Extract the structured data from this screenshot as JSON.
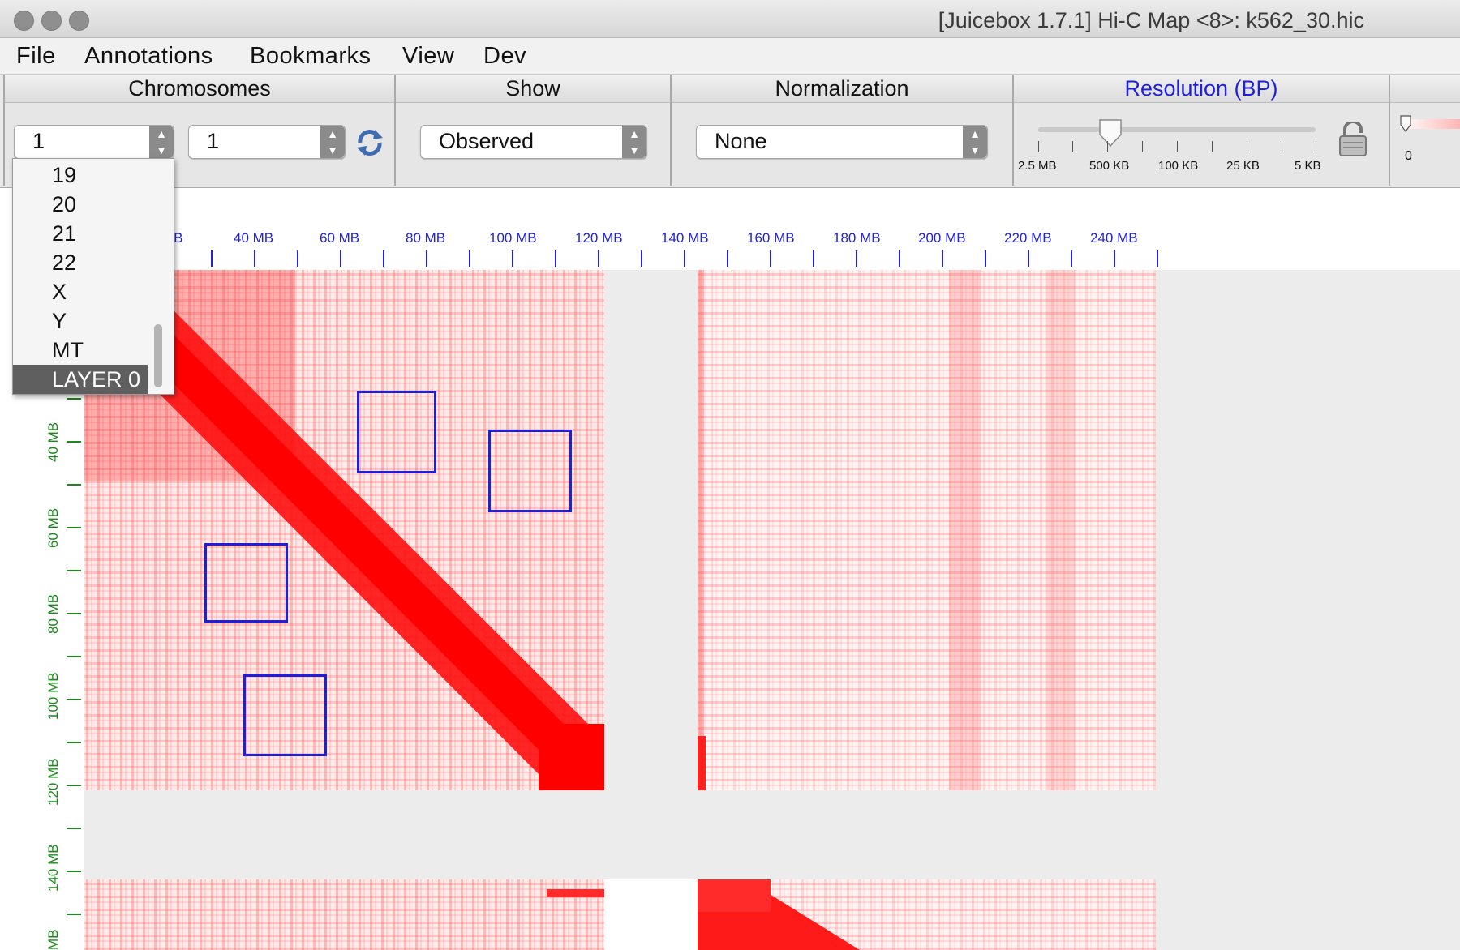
{
  "window": {
    "title": "[Juicebox 1.7.1] Hi-C Map <8>: k562_30.hic"
  },
  "menu": [
    "File",
    "Annotations",
    "Bookmarks",
    "View",
    "Dev"
  ],
  "panels": {
    "chromosomes": {
      "header": "Chromosomes",
      "chrom_x": "1",
      "chrom_y": "1"
    },
    "show": {
      "header": "Show",
      "value": "Observed"
    },
    "normalization": {
      "header": "Normalization",
      "value": "None"
    },
    "resolution": {
      "header": "Resolution (BP)",
      "header_color": "#1e1ede",
      "ticks": [
        "2.5 MB",
        "500 KB",
        "100 KB",
        "25 KB",
        "5 KB"
      ],
      "selected": "500 KB"
    },
    "color_range": {
      "min_label": "0"
    }
  },
  "dropdown": {
    "items": [
      "19",
      "20",
      "21",
      "22",
      "X",
      "Y",
      "MT",
      "LAYER 0"
    ],
    "selected": "LAYER 0"
  },
  "x_axis": {
    "labels": [
      "MB",
      "40 MB",
      "60 MB",
      "80 MB",
      "100 MB",
      "120 MB",
      "140 MB",
      "160 MB",
      "180 MB",
      "200 MB",
      "220 MB",
      "240 MB"
    ],
    "color": "#2323d6"
  },
  "y_axis": {
    "labels": [
      "40 MB",
      "60 MB",
      "80 MB",
      "100 MB",
      "120 MB",
      "140 MB",
      "MB"
    ],
    "color": "#1a8a1a"
  },
  "heatmap": {
    "color": "#ff0000"
  },
  "icons": {
    "refresh": "refresh-icon",
    "lock": "lock-icon"
  }
}
